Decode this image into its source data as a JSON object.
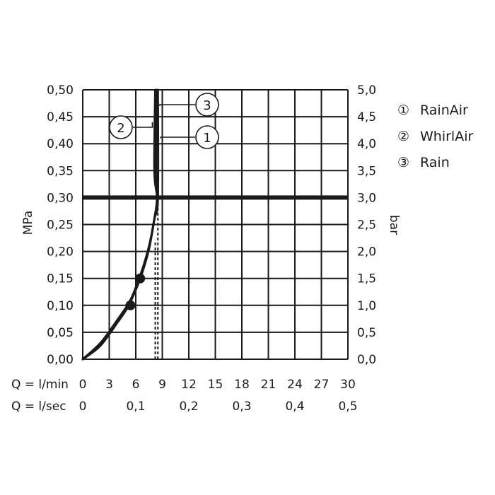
{
  "chart_data": {
    "type": "line",
    "x_rows": [
      {
        "label": "Q = l/min",
        "ticks": [
          "0",
          "3",
          "6",
          "9",
          "12",
          "15",
          "18",
          "21",
          "24",
          "27",
          "30"
        ]
      },
      {
        "label": "Q = l/sec",
        "ticks": [
          "0",
          "0,1",
          "0,2",
          "0,3",
          "0,4",
          "0,5"
        ]
      }
    ],
    "xlim": [
      0,
      30
    ],
    "y_left": {
      "label": "MPa",
      "ticks": [
        "0,00",
        "0,05",
        "0,10",
        "0,15",
        "0,20",
        "0,25",
        "0,30",
        "0,35",
        "0,40",
        "0,45",
        "0,50"
      ],
      "ylim": [
        0,
        0.5
      ]
    },
    "y_right": {
      "label": "bar",
      "ticks": [
        "0,0",
        "0,5",
        "1,0",
        "1,5",
        "2,0",
        "2,5",
        "3,0",
        "3,5",
        "4,0",
        "4,5",
        "5,0"
      ],
      "ylim": [
        0,
        5
      ]
    },
    "grid": true,
    "reference_line": {
      "y": 0.3
    },
    "legend": {
      "position": "right",
      "items": [
        {
          "marker": "①",
          "label": "RainAir"
        },
        {
          "marker": "②",
          "label": "WhirlAir"
        },
        {
          "marker": "③",
          "label": "Rain"
        }
      ]
    },
    "series": [
      {
        "id": "1",
        "points": [
          [
            0,
            0
          ],
          [
            2,
            0.025
          ],
          [
            4,
            0.07
          ],
          [
            5.2,
            0.1
          ],
          [
            6.5,
            0.15
          ],
          [
            7.4,
            0.2
          ],
          [
            8.1,
            0.26
          ],
          [
            8.5,
            0.3
          ],
          [
            8.5,
            0.5
          ]
        ],
        "markers": [
          [
            5.4,
            0.1
          ],
          [
            6.5,
            0.15
          ]
        ]
      },
      {
        "id": "2",
        "points": [
          [
            0,
            0
          ],
          [
            2,
            0.03
          ],
          [
            4,
            0.075
          ],
          [
            5.4,
            0.11
          ],
          [
            6.6,
            0.16
          ],
          [
            7.5,
            0.21
          ],
          [
            8.1,
            0.26
          ],
          [
            8.4,
            0.3
          ],
          [
            8.1,
            0.35
          ],
          [
            8.2,
            0.5
          ]
        ],
        "markers": []
      },
      {
        "id": "3",
        "points": [
          [
            0,
            0
          ],
          [
            2,
            0.03
          ],
          [
            4,
            0.072
          ],
          [
            5.3,
            0.105
          ],
          [
            6.6,
            0.155
          ],
          [
            7.5,
            0.205
          ],
          [
            8.2,
            0.27
          ],
          [
            8.5,
            0.3
          ],
          [
            8.3,
            0.35
          ],
          [
            8.4,
            0.5
          ]
        ],
        "markers": []
      }
    ],
    "dashed_extensions": [
      {
        "series": "1",
        "x": 8.5,
        "y": [
          0,
          0.3
        ]
      },
      {
        "series": "2",
        "x": 8.2,
        "y": [
          0,
          0.22
        ]
      }
    ],
    "callouts": [
      {
        "text": "3",
        "series": "3",
        "anchor": [
          8.4,
          0.47
        ]
      },
      {
        "text": "2",
        "series": "2",
        "anchor": [
          8.2,
          0.44
        ]
      },
      {
        "text": "1",
        "series": "1",
        "anchor": [
          8.5,
          0.41
        ]
      }
    ]
  }
}
